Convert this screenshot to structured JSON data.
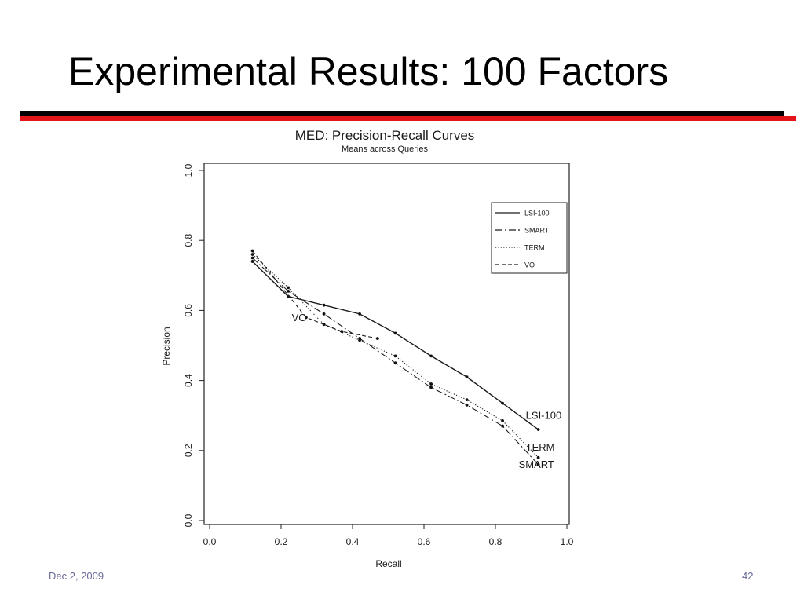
{
  "slide": {
    "title": "Experimental Results: 100 Factors",
    "footer_date": "Dec 2, 2009",
    "page_number": "42",
    "rule_colors": {
      "dark": "#000000",
      "accent": "#e4141b"
    }
  },
  "chart_data": {
    "type": "line",
    "title": "MED: Precision-Recall Curves",
    "subtitle": "Means across Queries",
    "xlabel": "Recall",
    "ylabel": "Precision",
    "xlim": [
      0.0,
      1.0
    ],
    "ylim": [
      0.0,
      1.0
    ],
    "xticks": [
      "0.0",
      "0.2",
      "0.4",
      "0.6",
      "0.8",
      "1.0"
    ],
    "yticks": [
      "0.0",
      "0.2",
      "0.4",
      "0.6",
      "0.8",
      "1.0"
    ],
    "grid": false,
    "legend_position": "top-right",
    "series": [
      {
        "name": "LSI-100",
        "line_style": "solid",
        "x": [
          0.12,
          0.22,
          0.32,
          0.42,
          0.52,
          0.62,
          0.72,
          0.82,
          0.92
        ],
        "y": [
          0.74,
          0.64,
          0.615,
          0.59,
          0.535,
          0.47,
          0.41,
          0.335,
          0.26
        ]
      },
      {
        "name": "SMART",
        "line_style": "dashdot",
        "x": [
          0.12,
          0.22,
          0.32,
          0.42,
          0.52,
          0.62,
          0.72,
          0.82,
          0.92
        ],
        "y": [
          0.75,
          0.655,
          0.59,
          0.52,
          0.45,
          0.38,
          0.33,
          0.27,
          0.16
        ]
      },
      {
        "name": "TERM",
        "line_style": "dotted",
        "x": [
          0.12,
          0.22,
          0.32,
          0.42,
          0.52,
          0.62,
          0.72,
          0.82,
          0.92
        ],
        "y": [
          0.76,
          0.665,
          0.56,
          0.515,
          0.47,
          0.39,
          0.345,
          0.285,
          0.18
        ]
      },
      {
        "name": "VO",
        "line_style": "dashed",
        "x": [
          0.12,
          0.27,
          0.37,
          0.47
        ],
        "y": [
          0.77,
          0.58,
          0.54,
          0.52
        ]
      }
    ],
    "annotations": [
      {
        "text": "VO",
        "x": 0.23,
        "y": 0.57
      },
      {
        "text": "LSI-100",
        "x": 0.885,
        "y": 0.29
      },
      {
        "text": "TERM",
        "x": 0.885,
        "y": 0.2
      },
      {
        "text": "SMART",
        "x": 0.865,
        "y": 0.15
      }
    ]
  }
}
